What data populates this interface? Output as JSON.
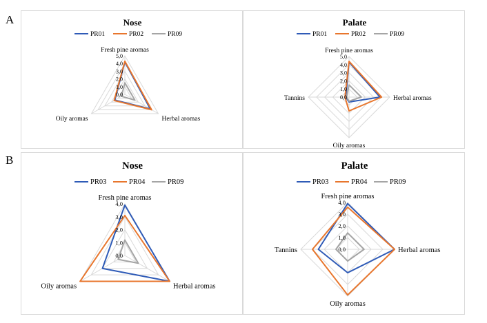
{
  "panels": [
    {
      "label": "A"
    },
    {
      "label": "B"
    }
  ],
  "colors": {
    "PR01": "#2f5bb7",
    "PR02": "#e8762d",
    "PR03": "#2f5bb7",
    "PR04": "#e8762d",
    "PR09": "#a5a5a5",
    "grid": "#d9d9d9"
  },
  "chart_data": [
    {
      "type": "radar",
      "panel": "A",
      "title": "Nose",
      "axes": [
        "Fresh pine aromas",
        "Herbal aromas",
        "Oily aromas"
      ],
      "ticks": [
        "0,0",
        "1,0",
        "2,0",
        "3,0",
        "4,0",
        "5,0"
      ],
      "range": [
        0,
        5
      ],
      "grid": true,
      "legend_position": "top",
      "series": [
        {
          "name": "PR01",
          "values": [
            4.2,
            3.8,
            1.5
          ]
        },
        {
          "name": "PR02",
          "values": [
            4.3,
            4.0,
            1.6
          ]
        },
        {
          "name": "PR09",
          "values": [
            1.5,
            1.5,
            0.5
          ]
        }
      ]
    },
    {
      "type": "radar",
      "panel": "A",
      "title": "Palate",
      "axes": [
        "Fresh pine aromas",
        "Herbal aromas",
        "Oily aromas",
        "Tannins"
      ],
      "ticks": [
        "0,0",
        "1,0",
        "2,0",
        "3,0",
        "4,0",
        "5,0"
      ],
      "range": [
        0,
        5
      ],
      "grid": true,
      "legend_position": "top",
      "series": [
        {
          "name": "PR01",
          "values": [
            4.3,
            3.8,
            0.6,
            0.4
          ]
        },
        {
          "name": "PR02",
          "values": [
            4.4,
            4.0,
            1.7,
            0.5
          ]
        },
        {
          "name": "PR09",
          "values": [
            1.5,
            1.5,
            0.5,
            0.3
          ]
        }
      ]
    },
    {
      "type": "radar",
      "panel": "B",
      "title": "Nose",
      "axes": [
        "Fresh pine aromas",
        "Herbal aromas",
        "Oily aromas"
      ],
      "ticks": [
        "0,0",
        "1,0",
        "2,0",
        "3,0",
        "4,0"
      ],
      "range": [
        0,
        4
      ],
      "grid": true,
      "legend_position": "top",
      "series": [
        {
          "name": "PR03",
          "values": [
            3.9,
            4.0,
            2.0
          ]
        },
        {
          "name": "PR04",
          "values": [
            3.1,
            4.0,
            4.0
          ]
        },
        {
          "name": "PR09",
          "values": [
            1.2,
            1.2,
            0.6
          ]
        }
      ]
    },
    {
      "type": "radar",
      "panel": "B",
      "title": "Palate",
      "axes": [
        "Fresh pine aromas",
        "Herbal aromas",
        "Oily aromas",
        "Tannins"
      ],
      "ticks": [
        "0,0",
        "1,0",
        "2,0",
        "3,0",
        "4,0"
      ],
      "range": [
        0,
        4
      ],
      "grid": true,
      "legend_position": "top",
      "series": [
        {
          "name": "PR03",
          "values": [
            3.9,
            4.0,
            2.0,
            2.5
          ]
        },
        {
          "name": "PR04",
          "values": [
            3.6,
            4.0,
            3.9,
            3.0
          ]
        },
        {
          "name": "PR09",
          "values": [
            1.4,
            1.4,
            1.0,
            1.0
          ]
        }
      ]
    }
  ]
}
